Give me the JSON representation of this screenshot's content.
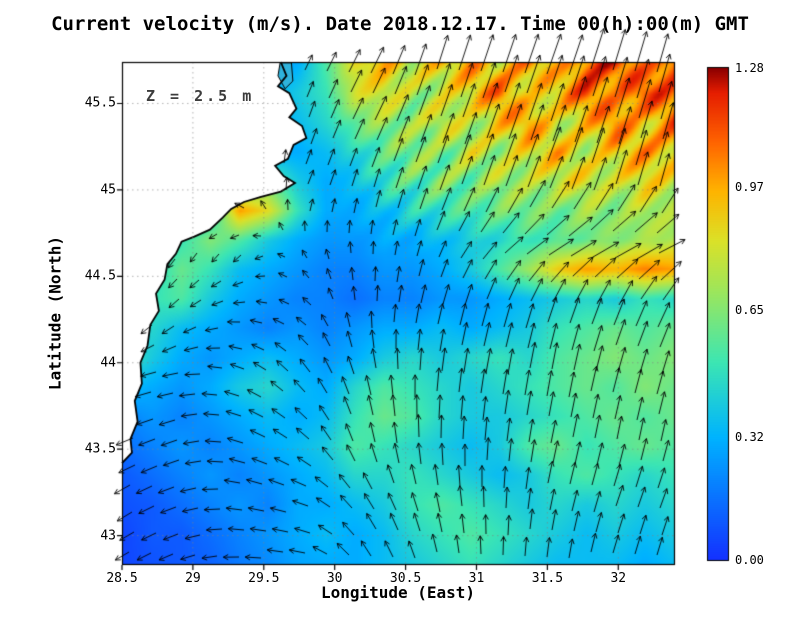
{
  "title": "Current velocity (m/s). Date 2018.12.17. Time 00(h):00(m) GMT",
  "annotation": {
    "depth_label": "Z = 2.5 m"
  },
  "axes": {
    "xlabel": "Longitude (East)",
    "ylabel": "Latitude (North)"
  },
  "chart_data": {
    "type": "heatmap",
    "subtype": "geographic velocity field with vector arrows overlay",
    "title": "Current velocity (m/s). Date 2018.12.17. Time 00(h):00(m) GMT",
    "xlabel": "Longitude (East)",
    "ylabel": "Latitude (North)",
    "units": "m/s",
    "depth_annotation": "Z = 2.5 m",
    "xlim": [
      28.5,
      32.4
    ],
    "ylim": [
      42.83,
      45.74
    ],
    "xticks": [
      28.5,
      29,
      29.5,
      30,
      30.5,
      31,
      31.5,
      32
    ],
    "xtick_labels": [
      "28.5",
      "29",
      "29.5",
      "30",
      "30.5",
      "31",
      "31.5",
      "32"
    ],
    "yticks": [
      43,
      43.5,
      44,
      44.5,
      45,
      45.5
    ],
    "ytick_labels": [
      "43",
      "43.5",
      "44",
      "44.5",
      "45",
      "45.5"
    ],
    "grid_on": true,
    "colorbar": {
      "min": 0.0,
      "max": 1.28,
      "ticks": [
        1.28,
        0.97,
        0.65,
        0.32,
        0.0
      ],
      "tick_labels": [
        "1.28",
        "0.97",
        "0.65",
        "0.32",
        "0.00"
      ],
      "position": "right"
    },
    "colormap_stops": [
      [
        0.0,
        [
          20,
          50,
          255
        ]
      ],
      [
        0.25,
        [
          0,
          180,
          255
        ]
      ],
      [
        0.4,
        [
          60,
          230,
          180
        ]
      ],
      [
        0.55,
        [
          160,
          230,
          90
        ]
      ],
      [
        0.65,
        [
          220,
          225,
          40
        ]
      ],
      [
        0.75,
        [
          255,
          180,
          0
        ]
      ],
      [
        0.85,
        [
          255,
          100,
          0
        ]
      ],
      [
        0.95,
        [
          230,
          30,
          0
        ]
      ],
      [
        1.0,
        [
          140,
          0,
          0
        ]
      ]
    ],
    "speed_grid": {
      "description": "current speed (m/s), rows north-to-south lat 45.74..42.83, cols west-to-east lon 28.5..32.4",
      "values": [
        [
          0.2,
          0.2,
          0.2,
          0.2,
          0.2,
          0.3,
          0.3,
          0.55,
          0.85,
          0.95,
          0.8,
          0.9,
          1.0,
          0.85,
          1.05,
          0.9,
          1.1,
          1.2,
          1.0,
          1.15
        ],
        [
          0.2,
          0.2,
          0.2,
          0.2,
          0.2,
          0.3,
          0.4,
          0.5,
          0.8,
          0.85,
          0.7,
          0.75,
          0.9,
          1.1,
          0.8,
          0.95,
          1.15,
          0.95,
          1.2,
          1.05
        ],
        [
          0.2,
          0.2,
          0.2,
          0.2,
          0.25,
          0.3,
          0.35,
          0.45,
          0.6,
          0.7,
          0.65,
          0.85,
          0.7,
          0.9,
          1.05,
          0.75,
          0.9,
          1.1,
          0.85,
          1.1
        ],
        [
          0.2,
          0.2,
          0.2,
          0.25,
          0.3,
          0.3,
          0.3,
          0.35,
          0.45,
          0.55,
          0.7,
          0.6,
          0.8,
          0.7,
          0.85,
          0.95,
          0.75,
          0.9,
          1.0,
          0.9
        ],
        [
          0.2,
          0.2,
          0.25,
          0.3,
          0.5,
          0.6,
          0.4,
          0.3,
          0.35,
          0.5,
          0.55,
          0.65,
          0.6,
          0.75,
          0.7,
          0.8,
          0.85,
          0.75,
          0.9,
          0.8
        ],
        [
          0.2,
          0.25,
          0.3,
          0.4,
          1.0,
          0.85,
          0.5,
          0.3,
          0.3,
          0.35,
          0.45,
          0.5,
          0.55,
          0.6,
          0.65,
          0.6,
          0.7,
          0.65,
          0.75,
          0.7
        ],
        [
          0.3,
          0.4,
          0.5,
          0.65,
          0.55,
          0.4,
          0.3,
          0.25,
          0.25,
          0.3,
          0.3,
          0.35,
          0.4,
          0.45,
          0.5,
          0.55,
          0.6,
          0.65,
          0.7,
          0.75
        ],
        [
          0.35,
          0.45,
          0.6,
          0.5,
          0.35,
          0.3,
          0.25,
          0.2,
          0.2,
          0.25,
          0.25,
          0.3,
          0.4,
          0.55,
          0.7,
          0.9,
          1.0,
          0.95,
          1.05,
          1.0
        ],
        [
          0.4,
          0.5,
          0.55,
          0.4,
          0.3,
          0.25,
          0.2,
          0.2,
          0.15,
          0.2,
          0.2,
          0.25,
          0.25,
          0.3,
          0.35,
          0.4,
          0.45,
          0.4,
          0.5,
          0.45
        ],
        [
          0.3,
          0.45,
          0.35,
          0.3,
          0.25,
          0.2,
          0.25,
          0.2,
          0.25,
          0.3,
          0.3,
          0.35,
          0.3,
          0.35,
          0.4,
          0.5,
          0.55,
          0.6,
          0.55,
          0.6
        ],
        [
          0.55,
          0.4,
          0.3,
          0.25,
          0.3,
          0.35,
          0.3,
          0.25,
          0.3,
          0.4,
          0.45,
          0.4,
          0.45,
          0.5,
          0.45,
          0.55,
          0.6,
          0.65,
          0.6,
          0.65
        ],
        [
          0.35,
          0.3,
          0.25,
          0.3,
          0.4,
          0.45,
          0.35,
          0.3,
          0.45,
          0.55,
          0.5,
          0.45,
          0.4,
          0.45,
          0.5,
          0.55,
          0.6,
          0.55,
          0.65,
          0.6
        ],
        [
          0.2,
          0.25,
          0.2,
          0.25,
          0.3,
          0.35,
          0.3,
          0.35,
          0.5,
          0.6,
          0.55,
          0.45,
          0.4,
          0.4,
          0.45,
          0.5,
          0.55,
          0.6,
          0.55,
          0.6
        ],
        [
          0.15,
          0.2,
          0.25,
          0.2,
          0.25,
          0.3,
          0.35,
          0.4,
          0.55,
          0.5,
          0.45,
          0.4,
          0.35,
          0.4,
          0.55,
          0.6,
          0.5,
          0.55,
          0.6,
          0.55
        ],
        [
          0.1,
          0.15,
          0.2,
          0.25,
          0.2,
          0.25,
          0.3,
          0.35,
          0.45,
          0.45,
          0.5,
          0.45,
          0.4,
          0.35,
          0.4,
          0.5,
          0.55,
          0.5,
          0.45,
          0.5
        ],
        [
          0.08,
          0.1,
          0.15,
          0.2,
          0.25,
          0.2,
          0.3,
          0.3,
          0.35,
          0.4,
          0.5,
          0.55,
          0.5,
          0.45,
          0.4,
          0.45,
          0.4,
          0.45,
          0.4,
          0.45
        ],
        [
          0.05,
          0.1,
          0.1,
          0.15,
          0.2,
          0.25,
          0.3,
          0.35,
          0.3,
          0.35,
          0.45,
          0.5,
          0.55,
          0.5,
          0.45,
          0.4,
          0.35,
          0.4,
          0.35,
          0.4
        ],
        [
          0.05,
          0.08,
          0.1,
          0.12,
          0.18,
          0.22,
          0.28,
          0.3,
          0.3,
          0.35,
          0.4,
          0.45,
          0.5,
          0.45,
          0.4,
          0.35,
          0.35,
          0.35,
          0.3,
          0.35
        ]
      ]
    },
    "vector_field": {
      "description": "u east / v north components, rows north-to-south lat 45.74..42.83, cols lon 28.5..32.4",
      "u": [
        [
          0,
          0,
          0,
          0.15,
          0.3,
          0.25,
          0.3,
          0.35,
          0.3,
          0.25
        ],
        [
          0,
          0,
          0,
          0.1,
          0.25,
          0.25,
          0.3,
          0.3,
          0.3,
          0.25
        ],
        [
          0,
          0,
          -0.15,
          0.1,
          0.1,
          0.2,
          0.25,
          0.3,
          0.25,
          0.2
        ],
        [
          0,
          -0.1,
          -0.1,
          -0.05,
          0.0,
          0.1,
          0.35,
          0.6,
          0.65,
          0.6
        ],
        [
          -0.15,
          -0.2,
          -0.2,
          -0.15,
          0.0,
          0.1,
          0.15,
          0.2,
          0.25,
          0.3
        ],
        [
          -0.3,
          -0.3,
          -0.25,
          -0.2,
          -0.1,
          0.05,
          0.1,
          0.1,
          0.15,
          0.15
        ],
        [
          -0.35,
          -0.3,
          -0.3,
          -0.25,
          -0.1,
          0.0,
          0.05,
          0.1,
          0.1,
          0.1
        ],
        [
          -0.3,
          -0.3,
          -0.3,
          -0.3,
          -0.2,
          -0.1,
          0.0,
          0.1,
          0.15,
          0.15
        ],
        [
          -0.25,
          -0.25,
          -0.3,
          -0.3,
          -0.2,
          -0.1,
          0.0,
          0.05,
          0.1,
          0.1
        ]
      ],
      "v": [
        [
          0,
          0,
          0,
          0.3,
          0.6,
          0.8,
          0.9,
          1.0,
          1.0,
          0.9
        ],
        [
          0,
          0,
          0.2,
          0.3,
          0.5,
          0.7,
          0.85,
          0.9,
          0.95,
          0.9
        ],
        [
          0,
          0.1,
          0.15,
          0.25,
          0.35,
          0.55,
          0.7,
          0.75,
          0.8,
          0.75
        ],
        [
          0,
          -0.15,
          -0.1,
          0.1,
          0.2,
          0.3,
          0.35,
          0.35,
          0.3,
          0.3
        ],
        [
          -0.2,
          -0.15,
          0.0,
          0.1,
          0.3,
          0.4,
          0.5,
          0.55,
          0.6,
          0.55
        ],
        [
          -0.1,
          -0.05,
          0.1,
          0.25,
          0.4,
          0.5,
          0.55,
          0.6,
          0.55,
          0.5
        ],
        [
          -0.15,
          -0.1,
          0.1,
          0.2,
          0.4,
          0.5,
          0.5,
          0.5,
          0.5,
          0.45
        ],
        [
          -0.2,
          -0.1,
          0.05,
          0.1,
          0.3,
          0.4,
          0.45,
          0.45,
          0.45,
          0.4
        ],
        [
          -0.15,
          -0.1,
          0.0,
          0.05,
          0.3,
          0.35,
          0.35,
          0.4,
          0.35,
          0.35
        ]
      ]
    },
    "coastline": [
      [
        29.62,
        45.74
      ],
      [
        29.66,
        45.66
      ],
      [
        29.6,
        45.6
      ],
      [
        29.68,
        45.56
      ],
      [
        29.73,
        45.47
      ],
      [
        29.68,
        45.42
      ],
      [
        29.77,
        45.37
      ],
      [
        29.8,
        45.3
      ],
      [
        29.71,
        45.26
      ],
      [
        29.67,
        45.18
      ],
      [
        29.58,
        45.14
      ],
      [
        29.64,
        45.08
      ],
      [
        29.72,
        45.04
      ],
      [
        29.62,
        44.99
      ],
      [
        29.48,
        44.96
      ],
      [
        29.36,
        44.93
      ],
      [
        29.27,
        44.89
      ],
      [
        29.21,
        44.84
      ],
      [
        29.12,
        44.77
      ],
      [
        29.01,
        44.73
      ],
      [
        28.92,
        44.7
      ],
      [
        28.88,
        44.63
      ],
      [
        28.82,
        44.57
      ],
      [
        28.8,
        44.48
      ],
      [
        28.74,
        44.4
      ],
      [
        28.76,
        44.3
      ],
      [
        28.7,
        44.22
      ],
      [
        28.68,
        44.1
      ],
      [
        28.63,
        44.0
      ],
      [
        28.64,
        43.88
      ],
      [
        28.59,
        43.78
      ],
      [
        28.61,
        43.66
      ],
      [
        28.56,
        43.56
      ],
      [
        28.57,
        43.48
      ],
      [
        28.5,
        43.42
      ]
    ],
    "lagoon": [
      [
        29.615,
        45.735
      ],
      [
        29.695,
        45.735
      ],
      [
        29.705,
        45.63
      ],
      [
        29.65,
        45.585
      ],
      [
        29.6,
        45.66
      ]
    ],
    "lagoon_color": "#2fb3dc"
  }
}
